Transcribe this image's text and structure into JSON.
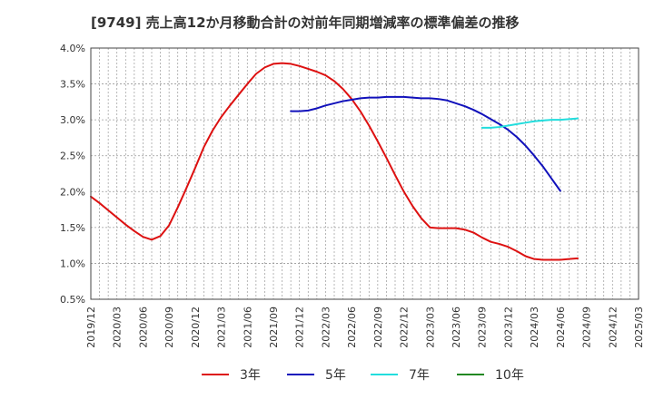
{
  "chart_data": {
    "type": "line",
    "title": "[9749]  売上高12か月移動合計の対前年同期増減率の標準偏差の推移",
    "xlabel": "",
    "ylabel": "",
    "ylim": [
      0.005,
      0.04
    ],
    "y_ticks": [
      "0.5%",
      "1.0%",
      "1.5%",
      "2.0%",
      "2.5%",
      "3.0%",
      "3.5%",
      "4.0%"
    ],
    "x_ticks": [
      "2019/12",
      "2020/03",
      "2020/06",
      "2020/09",
      "2020/12",
      "2021/03",
      "2021/06",
      "2021/09",
      "2021/12",
      "2022/03",
      "2022/06",
      "2022/09",
      "2022/12",
      "2023/03",
      "2023/06",
      "2023/09",
      "2023/12",
      "2024/03",
      "2024/06",
      "2024/09",
      "2024/12",
      "2025/03"
    ],
    "grid": true,
    "legend_position": "bottom",
    "colors": {
      "3年": "#dd1111",
      "5年": "#1111bb",
      "7年": "#22dddd",
      "10年": "#228822"
    },
    "series": [
      {
        "name": "3年",
        "color": "#dd1111",
        "points": [
          [
            "2019/12",
            0.0193
          ],
          [
            "2020/01",
            0.0184
          ],
          [
            "2020/02",
            0.0174
          ],
          [
            "2020/03",
            0.0164
          ],
          [
            "2020/04",
            0.0154
          ],
          [
            "2020/05",
            0.0145
          ],
          [
            "2020/06",
            0.0137
          ],
          [
            "2020/07",
            0.0133
          ],
          [
            "2020/08",
            0.0138
          ],
          [
            "2020/09",
            0.0153
          ],
          [
            "2020/10",
            0.0178
          ],
          [
            "2020/11",
            0.0205
          ],
          [
            "2020/12",
            0.0233
          ],
          [
            "2021/01",
            0.0262
          ],
          [
            "2021/02",
            0.0285
          ],
          [
            "2021/03",
            0.0304
          ],
          [
            "2021/04",
            0.032
          ],
          [
            "2021/05",
            0.0335
          ],
          [
            "2021/06",
            0.035
          ],
          [
            "2021/07",
            0.0364
          ],
          [
            "2021/08",
            0.0373
          ],
          [
            "2021/09",
            0.0378
          ],
          [
            "2021/10",
            0.0379
          ],
          [
            "2021/11",
            0.0378
          ],
          [
            "2021/12",
            0.0375
          ],
          [
            "2022/01",
            0.0371
          ],
          [
            "2022/02",
            0.0367
          ],
          [
            "2022/03",
            0.0362
          ],
          [
            "2022/04",
            0.0354
          ],
          [
            "2022/05",
            0.0343
          ],
          [
            "2022/06",
            0.0329
          ],
          [
            "2022/07",
            0.0312
          ],
          [
            "2022/08",
            0.0292
          ],
          [
            "2022/09",
            0.027
          ],
          [
            "2022/10",
            0.0247
          ],
          [
            "2022/11",
            0.0223
          ],
          [
            "2022/12",
            0.02
          ],
          [
            "2023/01",
            0.018
          ],
          [
            "2023/02",
            0.0163
          ],
          [
            "2023/03",
            0.015
          ],
          [
            "2023/04",
            0.0149
          ],
          [
            "2023/05",
            0.0149
          ],
          [
            "2023/06",
            0.0149
          ],
          [
            "2023/07",
            0.0147
          ],
          [
            "2023/08",
            0.0143
          ],
          [
            "2023/09",
            0.0136
          ],
          [
            "2023/10",
            0.013
          ],
          [
            "2023/11",
            0.0127
          ],
          [
            "2023/12",
            0.0123
          ],
          [
            "2024/01",
            0.0117
          ],
          [
            "2024/02",
            0.011
          ],
          [
            "2024/03",
            0.0106
          ],
          [
            "2024/04",
            0.0105
          ],
          [
            "2024/05",
            0.0105
          ],
          [
            "2024/06",
            0.0105
          ],
          [
            "2024/07",
            0.0106
          ],
          [
            "2024/08",
            0.0107
          ]
        ]
      },
      {
        "name": "5年",
        "color": "#1111bb",
        "points": [
          [
            "2021/11",
            0.0312
          ],
          [
            "2021/12",
            0.0312
          ],
          [
            "2022/01",
            0.0313
          ],
          [
            "2022/02",
            0.0316
          ],
          [
            "2022/03",
            0.032
          ],
          [
            "2022/04",
            0.0323
          ],
          [
            "2022/05",
            0.0326
          ],
          [
            "2022/06",
            0.0328
          ],
          [
            "2022/07",
            0.033
          ],
          [
            "2022/08",
            0.0331
          ],
          [
            "2022/09",
            0.0331
          ],
          [
            "2022/10",
            0.0332
          ],
          [
            "2022/11",
            0.0332
          ],
          [
            "2022/12",
            0.0332
          ],
          [
            "2023/01",
            0.0331
          ],
          [
            "2023/02",
            0.033
          ],
          [
            "2023/03",
            0.033
          ],
          [
            "2023/04",
            0.0329
          ],
          [
            "2023/05",
            0.0327
          ],
          [
            "2023/06",
            0.0323
          ],
          [
            "2023/07",
            0.0319
          ],
          [
            "2023/08",
            0.0314
          ],
          [
            "2023/09",
            0.0308
          ],
          [
            "2023/10",
            0.0301
          ],
          [
            "2023/11",
            0.0294
          ],
          [
            "2023/12",
            0.0286
          ],
          [
            "2024/01",
            0.0276
          ],
          [
            "2024/02",
            0.0264
          ],
          [
            "2024/03",
            0.025
          ],
          [
            "2024/04",
            0.0235
          ],
          [
            "2024/05",
            0.0218
          ],
          [
            "2024/06",
            0.0201
          ]
        ]
      },
      {
        "name": "7年",
        "color": "#22dddd",
        "points": [
          [
            "2023/09",
            0.0289
          ],
          [
            "2023/10",
            0.0289
          ],
          [
            "2023/11",
            0.029
          ],
          [
            "2023/12",
            0.0292
          ],
          [
            "2024/01",
            0.0294
          ],
          [
            "2024/02",
            0.0296
          ],
          [
            "2024/03",
            0.0298
          ],
          [
            "2024/04",
            0.0299
          ],
          [
            "2024/05",
            0.03
          ],
          [
            "2024/06",
            0.03
          ],
          [
            "2024/07",
            0.0301
          ],
          [
            "2024/08",
            0.0302
          ]
        ]
      },
      {
        "name": "10年",
        "color": "#228822",
        "points": []
      }
    ]
  }
}
